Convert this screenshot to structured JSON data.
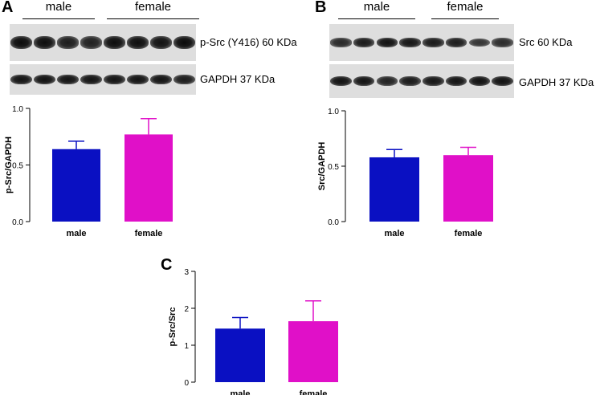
{
  "panels": {
    "A": {
      "letter": "A",
      "groups": [
        "male",
        "female"
      ],
      "blots": [
        {
          "label": "p-Src (Y416) 60 KDa",
          "intensities": [
            1.0,
            0.98,
            0.85,
            0.82,
            0.98,
            0.98,
            0.95,
            1.0
          ]
        },
        {
          "label": "GAPDH 37 KDa",
          "intensities": [
            0.92,
            0.95,
            0.93,
            0.92,
            0.93,
            0.92,
            0.92,
            0.85
          ]
        }
      ]
    },
    "B": {
      "letter": "B",
      "groups": [
        "male",
        "female"
      ],
      "blots": [
        {
          "label": "Src 60 KDa",
          "intensities": [
            0.75,
            0.88,
            0.95,
            0.9,
            0.88,
            0.85,
            0.65,
            0.72
          ]
        },
        {
          "label": "GAPDH 37 KDa",
          "intensities": [
            0.95,
            0.92,
            0.8,
            0.88,
            0.9,
            0.93,
            0.95,
            0.95
          ]
        }
      ]
    },
    "C": {
      "letter": "C"
    }
  },
  "chart_data": [
    {
      "type": "bar",
      "panel": "A",
      "categories": [
        "male",
        "female"
      ],
      "values": [
        0.64,
        0.77
      ],
      "errors": [
        0.07,
        0.14
      ],
      "colors": [
        "#0a10c2",
        "#e010c8"
      ],
      "ylabel": "p-Src/GAPDH",
      "ylim": [
        0,
        1.0
      ],
      "yticks": [
        0.0,
        0.5,
        1.0
      ],
      "ytick_labels": [
        "0.0",
        "0.5",
        "1.0"
      ]
    },
    {
      "type": "bar",
      "panel": "B",
      "categories": [
        "male",
        "female"
      ],
      "values": [
        0.58,
        0.6
      ],
      "errors": [
        0.07,
        0.07
      ],
      "colors": [
        "#0a10c2",
        "#e010c8"
      ],
      "ylabel": "Src/GAPDH",
      "ylim": [
        0,
        1.0
      ],
      "yticks": [
        0.0,
        0.5,
        1.0
      ],
      "ytick_labels": [
        "0.0",
        "0.5",
        "1.0"
      ]
    },
    {
      "type": "bar",
      "panel": "C",
      "categories": [
        "male",
        "female"
      ],
      "values": [
        1.45,
        1.65
      ],
      "errors": [
        0.3,
        0.55
      ],
      "colors": [
        "#0a10c2",
        "#e010c8"
      ],
      "ylabel": "p-Src/Src",
      "ylim": [
        0,
        3
      ],
      "yticks": [
        0,
        1,
        2,
        3
      ],
      "ytick_labels": [
        "0",
        "1",
        "2",
        "3"
      ]
    }
  ]
}
